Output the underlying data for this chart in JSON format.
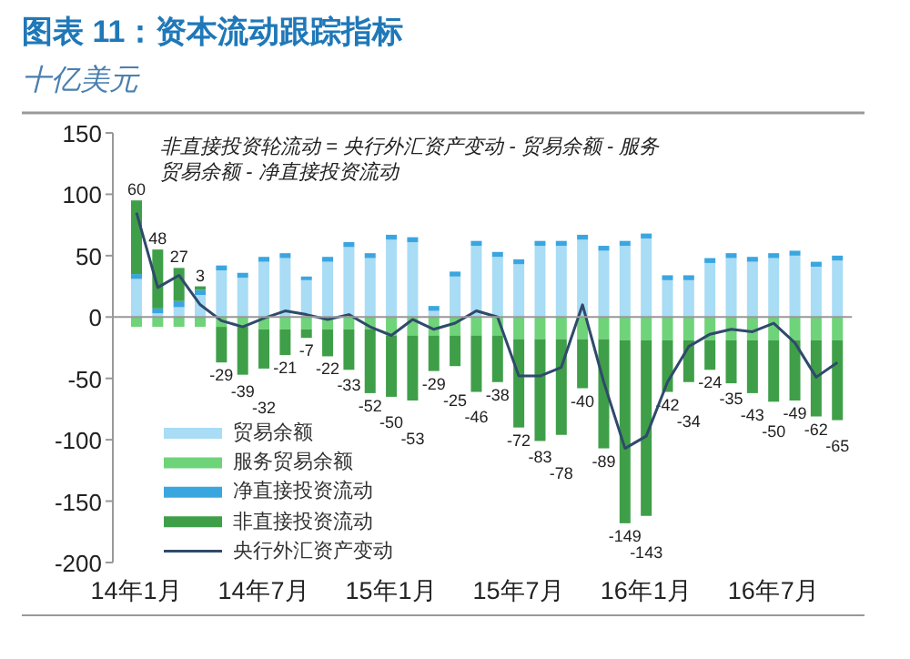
{
  "chart_data": {
    "type": "bar",
    "stacked": true,
    "title": "图表 11：资本流动跟踪指标",
    "subtitle": "十亿美元",
    "annotations": [
      "非直接投资轮流动 = 央行外汇资产变动 - 贸易余额 - 服务贸易余额 - 净直接投资流动"
    ],
    "categories": [
      "14年1月",
      null,
      null,
      null,
      null,
      null,
      "14年7月",
      null,
      null,
      null,
      null,
      null,
      "15年1月",
      null,
      null,
      null,
      null,
      null,
      "15年7月",
      null,
      null,
      null,
      null,
      null,
      "16年1月",
      null,
      null,
      null,
      null,
      null,
      "16年7月",
      null,
      null,
      null
    ],
    "ylim": [
      -200,
      150
    ],
    "yticks": [
      -200,
      -150,
      -100,
      -50,
      0,
      50,
      100,
      150
    ],
    "legend": "bottom left",
    "series": [
      {
        "name": "贸易余额",
        "color": "#a9dcf5",
        "values": [
          31,
          3,
          8,
          18,
          38,
          32,
          45,
          48,
          30,
          45,
          57,
          48,
          63,
          61,
          5,
          33,
          58,
          49,
          43,
          58,
          58,
          63,
          54,
          58,
          64,
          30,
          30,
          44,
          48,
          45,
          48,
          50,
          41,
          46
        ]
      },
      {
        "name": "服务贸易余额",
        "color": "#6fd37a",
        "values": [
          -8,
          -8,
          -8,
          -8,
          -8,
          -8,
          -10,
          -10,
          -10,
          -10,
          -10,
          -10,
          -15,
          -15,
          -15,
          -15,
          -15,
          -15,
          -18,
          -18,
          -18,
          -18,
          -18,
          -19,
          -19,
          -19,
          -19,
          -19,
          -19,
          -19,
          -19,
          -19,
          -19,
          -19
        ]
      },
      {
        "name": "净直接投资流动",
        "color": "#3aa6e0",
        "values": [
          4,
          4,
          5,
          4,
          4,
          4,
          4,
          4,
          3,
          4,
          4,
          4,
          4,
          4,
          4,
          4,
          4,
          4,
          4,
          4,
          4,
          4,
          4,
          4,
          4,
          4,
          4,
          4,
          4,
          4,
          4,
          4,
          4,
          4
        ]
      },
      {
        "name": "非直接投资流动",
        "color": "#3f9f49",
        "values": [
          60,
          48,
          27,
          3,
          -29,
          -39,
          -32,
          -21,
          -7,
          -22,
          -33,
          -52,
          -50,
          -53,
          -29,
          -25,
          -46,
          -38,
          -72,
          -83,
          -78,
          -40,
          -89,
          -149,
          -143,
          -42,
          -34,
          -24,
          -35,
          -43,
          -50,
          -49,
          -62,
          -65
        ],
        "value_labels": [
          "60",
          "48",
          "27",
          "3",
          "-29",
          "-39",
          "-32",
          "-21",
          "-7",
          "-22",
          "-33",
          "-52",
          "-50",
          "-53",
          "-29",
          "-25",
          "-46",
          "-38",
          "-72",
          "-83",
          "-78",
          "-40",
          "-89",
          "-149",
          "-143",
          "-42",
          "-34",
          "-24",
          "-35",
          "-43",
          "-50",
          "-49",
          "-62",
          "-65"
        ]
      },
      {
        "name": "央行外汇资产变动",
        "type": "line",
        "color": "#2f4a6b",
        "values": [
          85,
          24,
          34,
          10,
          -3,
          -8,
          -1,
          5,
          2,
          -2,
          2,
          -8,
          -15,
          -2,
          -10,
          -5,
          5,
          0,
          -48,
          -48,
          -41,
          10,
          -53,
          -107,
          -97,
          -53,
          -24,
          -14,
          -10,
          -12,
          -5,
          -21,
          -49,
          -37
        ]
      }
    ]
  }
}
